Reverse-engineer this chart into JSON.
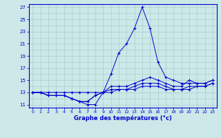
{
  "xlabel": "Graphe des températures (°c)",
  "background_color": "#cce8e8",
  "grid_color": "#aacece",
  "line_color": "#0000cc",
  "xlim": [
    -0.5,
    23.5
  ],
  "ylim": [
    10.5,
    27.5
  ],
  "yticks": [
    11,
    13,
    15,
    17,
    19,
    21,
    23,
    25,
    27
  ],
  "yticks_minor": [
    12,
    14,
    16,
    18,
    20,
    22,
    24,
    26
  ],
  "xticks": [
    0,
    1,
    2,
    3,
    4,
    5,
    6,
    7,
    8,
    9,
    10,
    11,
    12,
    13,
    14,
    15,
    16,
    17,
    18,
    19,
    20,
    21,
    22,
    23
  ],
  "series": [
    {
      "x": [
        0,
        1,
        2,
        3,
        4,
        5,
        6,
        7,
        8,
        9,
        10,
        11,
        12,
        13,
        14,
        15,
        16,
        17,
        18,
        19,
        20,
        21,
        22,
        23
      ],
      "y": [
        13,
        13,
        12.5,
        12.5,
        12.5,
        12,
        11.5,
        11,
        11,
        13,
        16,
        19.5,
        21,
        23.5,
        27,
        23.5,
        18,
        15.5,
        15,
        14.5,
        14.5,
        14.5,
        14.5,
        15
      ]
    },
    {
      "x": [
        0,
        1,
        2,
        3,
        4,
        5,
        6,
        7,
        8,
        9,
        10,
        11,
        12,
        13,
        14,
        15,
        16,
        17,
        18,
        19,
        20,
        21,
        22,
        23
      ],
      "y": [
        13,
        13,
        12.5,
        12.5,
        12.5,
        12,
        11.5,
        11.5,
        12.5,
        13,
        14,
        14,
        14,
        14.5,
        15,
        15.5,
        15,
        14.5,
        14,
        14,
        15,
        14.5,
        14.5,
        15
      ]
    },
    {
      "x": [
        0,
        1,
        2,
        3,
        4,
        5,
        6,
        7,
        8,
        9,
        10,
        11,
        12,
        13,
        14,
        15,
        16,
        17,
        18,
        19,
        20,
        21,
        22,
        23
      ],
      "y": [
        13,
        13,
        12.5,
        12.5,
        12.5,
        12,
        11.5,
        11.5,
        12.5,
        13,
        13.5,
        13.5,
        13.5,
        14,
        14.5,
        14.5,
        14.5,
        14,
        13.5,
        13.5,
        14,
        14,
        14,
        14.5
      ]
    },
    {
      "x": [
        0,
        1,
        2,
        3,
        4,
        5,
        6,
        7,
        8,
        9,
        10,
        11,
        12,
        13,
        14,
        15,
        16,
        17,
        18,
        19,
        20,
        21,
        22,
        23
      ],
      "y": [
        13,
        13,
        13,
        13,
        13,
        13,
        13,
        13,
        13,
        13,
        13,
        13.5,
        13.5,
        13.5,
        14,
        14,
        14,
        13.5,
        13.5,
        13.5,
        13.5,
        14,
        14,
        14.5
      ]
    }
  ]
}
